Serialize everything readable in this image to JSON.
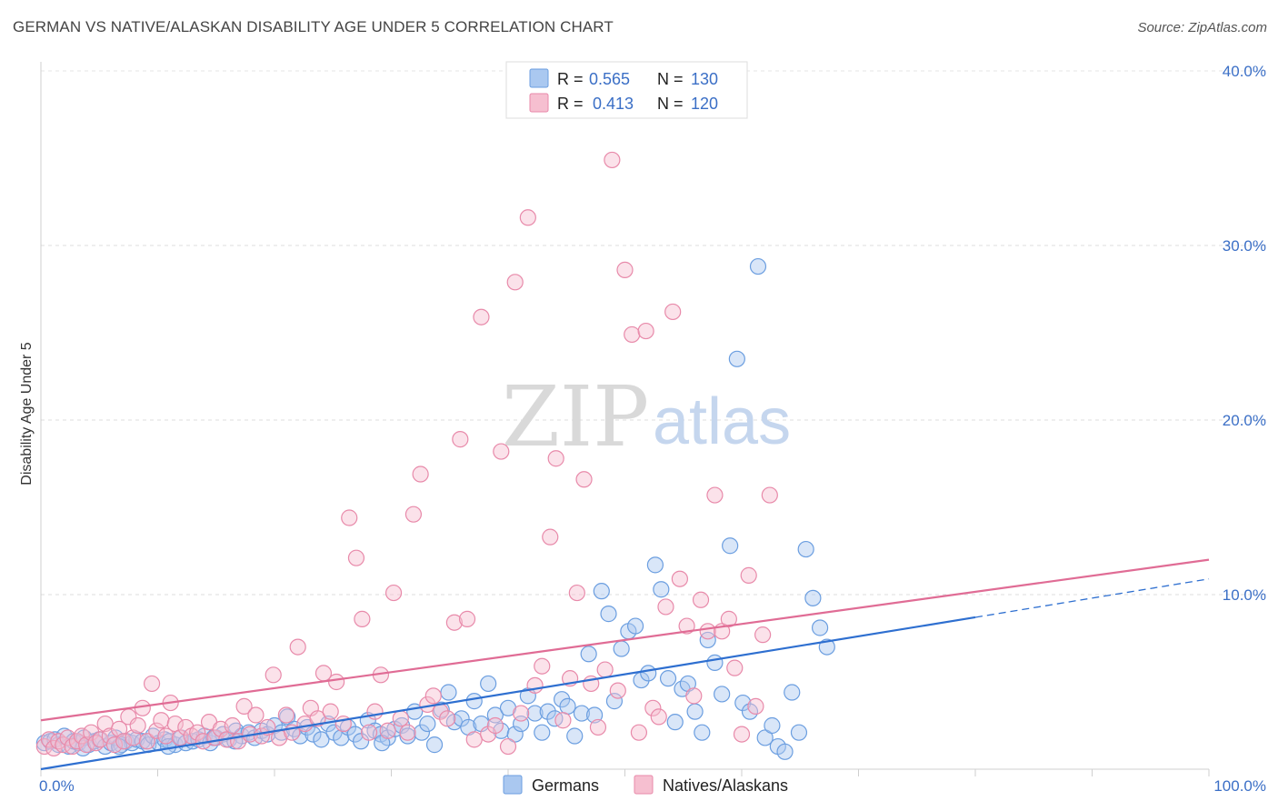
{
  "title": "GERMAN VS NATIVE/ALASKAN DISABILITY AGE UNDER 5 CORRELATION CHART",
  "source": "Source: ZipAtlas.com",
  "watermark": {
    "part1": "ZIP",
    "part2": "atlas"
  },
  "legend_stats": [
    {
      "r_label": "R =",
      "r_value": "0.565",
      "n_label": "N =",
      "n_value": "130",
      "color": "#aac8f0",
      "stroke": "#6b9ee0"
    },
    {
      "r_label": "R =",
      "r_value": "0.413",
      "n_label": "N =",
      "n_value": "120",
      "color": "#f6bfd0",
      "stroke": "#e88aaa"
    }
  ],
  "bottom_legend": [
    {
      "label": "Germans",
      "color": "#aac8f0",
      "stroke": "#6b9ee0"
    },
    {
      "label": "Natives/Alaskans",
      "color": "#f6bfd0",
      "stroke": "#e88aaa"
    }
  ],
  "chart_data": {
    "type": "scatter",
    "title": "GERMAN VS NATIVE/ALASKAN DISABILITY AGE UNDER 5 CORRELATION CHART",
    "xlabel": "",
    "ylabel": "Disability Age Under 5",
    "xlim": [
      0,
      100
    ],
    "ylim": [
      0,
      40
    ],
    "x_tick_labels": [
      "0.0%",
      "100.0%"
    ],
    "y_ticks": [
      10,
      20,
      30,
      40
    ],
    "y_tick_labels": [
      "10.0%",
      "20.0%",
      "30.0%",
      "40.0%"
    ],
    "grid": "horizontal dashed",
    "legend_position": "top-center",
    "series": [
      {
        "name": "Germans",
        "color": "#6b9ee0",
        "fill": "#aac8f0",
        "trend": {
          "x": [
            0,
            80
          ],
          "y": [
            0.0,
            8.7
          ],
          "dashed_ext": {
            "x": [
              80,
              100
            ],
            "y": [
              8.7,
              10.9
            ]
          },
          "color": "#2e6fd0"
        },
        "points": [
          [
            0.3,
            1.5
          ],
          [
            0.8,
            1.6
          ],
          [
            1.2,
            1.7
          ],
          [
            1.5,
            1.4
          ],
          [
            2,
            1.9
          ],
          [
            2.4,
            1.3
          ],
          [
            2.8,
            1.6
          ],
          [
            3.2,
            1.5
          ],
          [
            3.7,
            1.8
          ],
          [
            4.1,
            1.4
          ],
          [
            4.6,
            1.6
          ],
          [
            5,
            1.7
          ],
          [
            5.5,
            1.3
          ],
          [
            6,
            1.5
          ],
          [
            6.4,
            1.8
          ],
          [
            6.9,
            1.4
          ],
          [
            7.3,
            1.6
          ],
          [
            7.8,
            1.5
          ],
          [
            8.2,
            1.7
          ],
          [
            8.7,
            1.6
          ],
          [
            9.2,
            1.4
          ],
          [
            9.6,
            1.9
          ],
          [
            10.1,
            1.5
          ],
          [
            10.6,
            1.7
          ],
          [
            11,
            1.6
          ],
          [
            11.5,
            1.4
          ],
          [
            12,
            1.8
          ],
          [
            12.4,
            1.5
          ],
          [
            13,
            1.6
          ],
          [
            13.5,
            1.7
          ],
          [
            14,
            1.9
          ],
          [
            14.5,
            1.5
          ],
          [
            15,
            1.8
          ],
          [
            15.6,
            2.0
          ],
          [
            16.1,
            1.7
          ],
          [
            16.7,
            2.2
          ],
          [
            17.2,
            1.9
          ],
          [
            17.8,
            2.1
          ],
          [
            18.3,
            1.8
          ],
          [
            18.9,
            2.2
          ],
          [
            19.4,
            2.0
          ],
          [
            20,
            2.5
          ],
          [
            20.6,
            2.1
          ],
          [
            21.1,
            3.0
          ],
          [
            21.7,
            2.3
          ],
          [
            22.2,
            1.9
          ],
          [
            22.8,
            2.4
          ],
          [
            23.3,
            2.0
          ],
          [
            24,
            1.7
          ],
          [
            24.6,
            2.6
          ],
          [
            25.1,
            2.1
          ],
          [
            25.7,
            1.8
          ],
          [
            26.3,
            2.4
          ],
          [
            26.9,
            2.0
          ],
          [
            27.4,
            1.6
          ],
          [
            28,
            2.8
          ],
          [
            28.6,
            2.2
          ],
          [
            29.1,
            2.0
          ],
          [
            29.7,
            1.8
          ],
          [
            30.3,
            2.3
          ],
          [
            30.9,
            2.5
          ],
          [
            31.4,
            1.9
          ],
          [
            32,
            3.3
          ],
          [
            32.6,
            2.1
          ],
          [
            33.1,
            2.6
          ],
          [
            33.7,
            1.4
          ],
          [
            34.3,
            3.4
          ],
          [
            34.9,
            4.4
          ],
          [
            35.4,
            2.7
          ],
          [
            36,
            2.9
          ],
          [
            36.6,
            2.4
          ],
          [
            37.1,
            3.9
          ],
          [
            37.7,
            2.6
          ],
          [
            38.3,
            4.9
          ],
          [
            38.9,
            3.1
          ],
          [
            39.4,
            2.2
          ],
          [
            40,
            3.5
          ],
          [
            40.6,
            2.0
          ],
          [
            41.1,
            2.6
          ],
          [
            41.7,
            4.2
          ],
          [
            42.3,
            3.2
          ],
          [
            42.9,
            2.1
          ],
          [
            43.4,
            3.3
          ],
          [
            44,
            2.9
          ],
          [
            44.6,
            4.0
          ],
          [
            45.1,
            3.6
          ],
          [
            45.7,
            1.9
          ],
          [
            46.3,
            3.2
          ],
          [
            46.9,
            6.6
          ],
          [
            47.4,
            3.1
          ],
          [
            48,
            10.2
          ],
          [
            48.6,
            8.9
          ],
          [
            49.1,
            3.9
          ],
          [
            49.7,
            6.9
          ],
          [
            50.3,
            7.9
          ],
          [
            50.9,
            8.2
          ],
          [
            51.4,
            5.1
          ],
          [
            52,
            5.5
          ],
          [
            52.6,
            11.7
          ],
          [
            53.1,
            10.3
          ],
          [
            53.7,
            5.2
          ],
          [
            54.3,
            2.7
          ],
          [
            54.9,
            4.6
          ],
          [
            55.4,
            4.9
          ],
          [
            56,
            3.3
          ],
          [
            56.6,
            2.1
          ],
          [
            57.1,
            7.4
          ],
          [
            57.7,
            6.1
          ],
          [
            58.3,
            4.3
          ],
          [
            59,
            12.8
          ],
          [
            59.6,
            23.5
          ],
          [
            60.1,
            3.8
          ],
          [
            60.7,
            3.3
          ],
          [
            61.4,
            28.8
          ],
          [
            62,
            1.8
          ],
          [
            62.6,
            2.5
          ],
          [
            63.1,
            1.3
          ],
          [
            63.7,
            1.0
          ],
          [
            64.3,
            4.4
          ],
          [
            64.9,
            2.1
          ],
          [
            65.5,
            12.6
          ],
          [
            66.1,
            9.8
          ],
          [
            66.7,
            8.1
          ],
          [
            67.3,
            7.0
          ],
          [
            14.8,
            1.8
          ],
          [
            3.6,
            1.2
          ],
          [
            6.7,
            1.3
          ],
          [
            10.9,
            1.3
          ],
          [
            29.2,
            1.5
          ],
          [
            16.6,
            1.6
          ]
        ]
      },
      {
        "name": "Natives/Alaskans",
        "color": "#e88aaa",
        "fill": "#f6bfd0",
        "trend": {
          "x": [
            0,
            100
          ],
          "y": [
            2.8,
            12.0
          ],
          "color": "#e06c95"
        },
        "points": [
          [
            0.3,
            1.3
          ],
          [
            0.7,
            1.7
          ],
          [
            1.1,
            1.2
          ],
          [
            1.5,
            1.6
          ],
          [
            1.9,
            1.4
          ],
          [
            2.3,
            1.8
          ],
          [
            2.7,
            1.3
          ],
          [
            3.1,
            1.6
          ],
          [
            3.5,
            1.9
          ],
          [
            3.9,
            1.4
          ],
          [
            4.3,
            2.1
          ],
          [
            4.7,
            1.5
          ],
          [
            5.1,
            1.7
          ],
          [
            5.5,
            2.6
          ],
          [
            5.9,
            1.9
          ],
          [
            6.3,
            1.4
          ],
          [
            6.7,
            2.3
          ],
          [
            7.1,
            1.6
          ],
          [
            7.5,
            3.0
          ],
          [
            7.9,
            1.8
          ],
          [
            8.3,
            2.5
          ],
          [
            8.7,
            3.5
          ],
          [
            9.1,
            1.6
          ],
          [
            9.5,
            4.9
          ],
          [
            9.9,
            2.2
          ],
          [
            10.3,
            2.8
          ],
          [
            10.7,
            1.9
          ],
          [
            11.1,
            3.8
          ],
          [
            11.5,
            2.6
          ],
          [
            11.9,
            1.8
          ],
          [
            12.4,
            2.4
          ],
          [
            12.9,
            1.9
          ],
          [
            13.4,
            2.1
          ],
          [
            13.9,
            1.6
          ],
          [
            14.4,
            2.7
          ],
          [
            14.9,
            1.8
          ],
          [
            15.4,
            2.3
          ],
          [
            15.9,
            1.7
          ],
          [
            16.4,
            2.5
          ],
          [
            16.9,
            1.6
          ],
          [
            17.4,
            3.6
          ],
          [
            17.9,
            2.0
          ],
          [
            18.4,
            3.1
          ],
          [
            18.9,
            1.9
          ],
          [
            19.4,
            2.4
          ],
          [
            19.9,
            5.4
          ],
          [
            20.4,
            1.8
          ],
          [
            21,
            3.1
          ],
          [
            21.5,
            2.1
          ],
          [
            22,
            7.0
          ],
          [
            22.6,
            2.6
          ],
          [
            23.1,
            3.5
          ],
          [
            23.7,
            2.9
          ],
          [
            24.2,
            5.5
          ],
          [
            24.8,
            3.3
          ],
          [
            25.3,
            5.0
          ],
          [
            25.9,
            2.6
          ],
          [
            26.4,
            14.4
          ],
          [
            27,
            12.1
          ],
          [
            27.5,
            8.6
          ],
          [
            28.1,
            2.1
          ],
          [
            28.6,
            3.3
          ],
          [
            29.1,
            5.4
          ],
          [
            29.7,
            2.2
          ],
          [
            30.2,
            10.1
          ],
          [
            30.8,
            2.9
          ],
          [
            31.4,
            2.1
          ],
          [
            31.9,
            14.6
          ],
          [
            32.5,
            16.9
          ],
          [
            33.1,
            3.7
          ],
          [
            33.6,
            4.2
          ],
          [
            34.2,
            3.3
          ],
          [
            34.8,
            2.9
          ],
          [
            35.4,
            8.4
          ],
          [
            35.9,
            18.9
          ],
          [
            36.5,
            8.6
          ],
          [
            37.1,
            1.7
          ],
          [
            37.7,
            25.9
          ],
          [
            38.3,
            2.0
          ],
          [
            38.9,
            2.5
          ],
          [
            39.4,
            18.2
          ],
          [
            40,
            1.3
          ],
          [
            40.6,
            27.9
          ],
          [
            41.1,
            3.2
          ],
          [
            41.7,
            31.6
          ],
          [
            42.3,
            4.8
          ],
          [
            42.9,
            5.9
          ],
          [
            43.6,
            13.3
          ],
          [
            44.1,
            17.8
          ],
          [
            44.7,
            2.8
          ],
          [
            45.3,
            5.2
          ],
          [
            45.9,
            10.1
          ],
          [
            46.5,
            16.6
          ],
          [
            47.1,
            4.9
          ],
          [
            47.7,
            2.4
          ],
          [
            48.3,
            5.7
          ],
          [
            48.9,
            34.9
          ],
          [
            49.4,
            4.5
          ],
          [
            50,
            28.6
          ],
          [
            50.6,
            24.9
          ],
          [
            51.2,
            2.1
          ],
          [
            51.8,
            25.1
          ],
          [
            52.4,
            3.5
          ],
          [
            52.9,
            3.0
          ],
          [
            53.5,
            9.3
          ],
          [
            54.1,
            26.2
          ],
          [
            54.7,
            10.9
          ],
          [
            55.3,
            8.2
          ],
          [
            55.9,
            4.2
          ],
          [
            56.5,
            9.7
          ],
          [
            57.1,
            7.9
          ],
          [
            57.7,
            15.7
          ],
          [
            58.3,
            7.9
          ],
          [
            58.9,
            8.6
          ],
          [
            59.4,
            5.8
          ],
          [
            60,
            2.0
          ],
          [
            60.6,
            11.1
          ],
          [
            61.2,
            3.6
          ],
          [
            61.8,
            7.7
          ],
          [
            62.4,
            15.7
          ]
        ]
      }
    ]
  }
}
